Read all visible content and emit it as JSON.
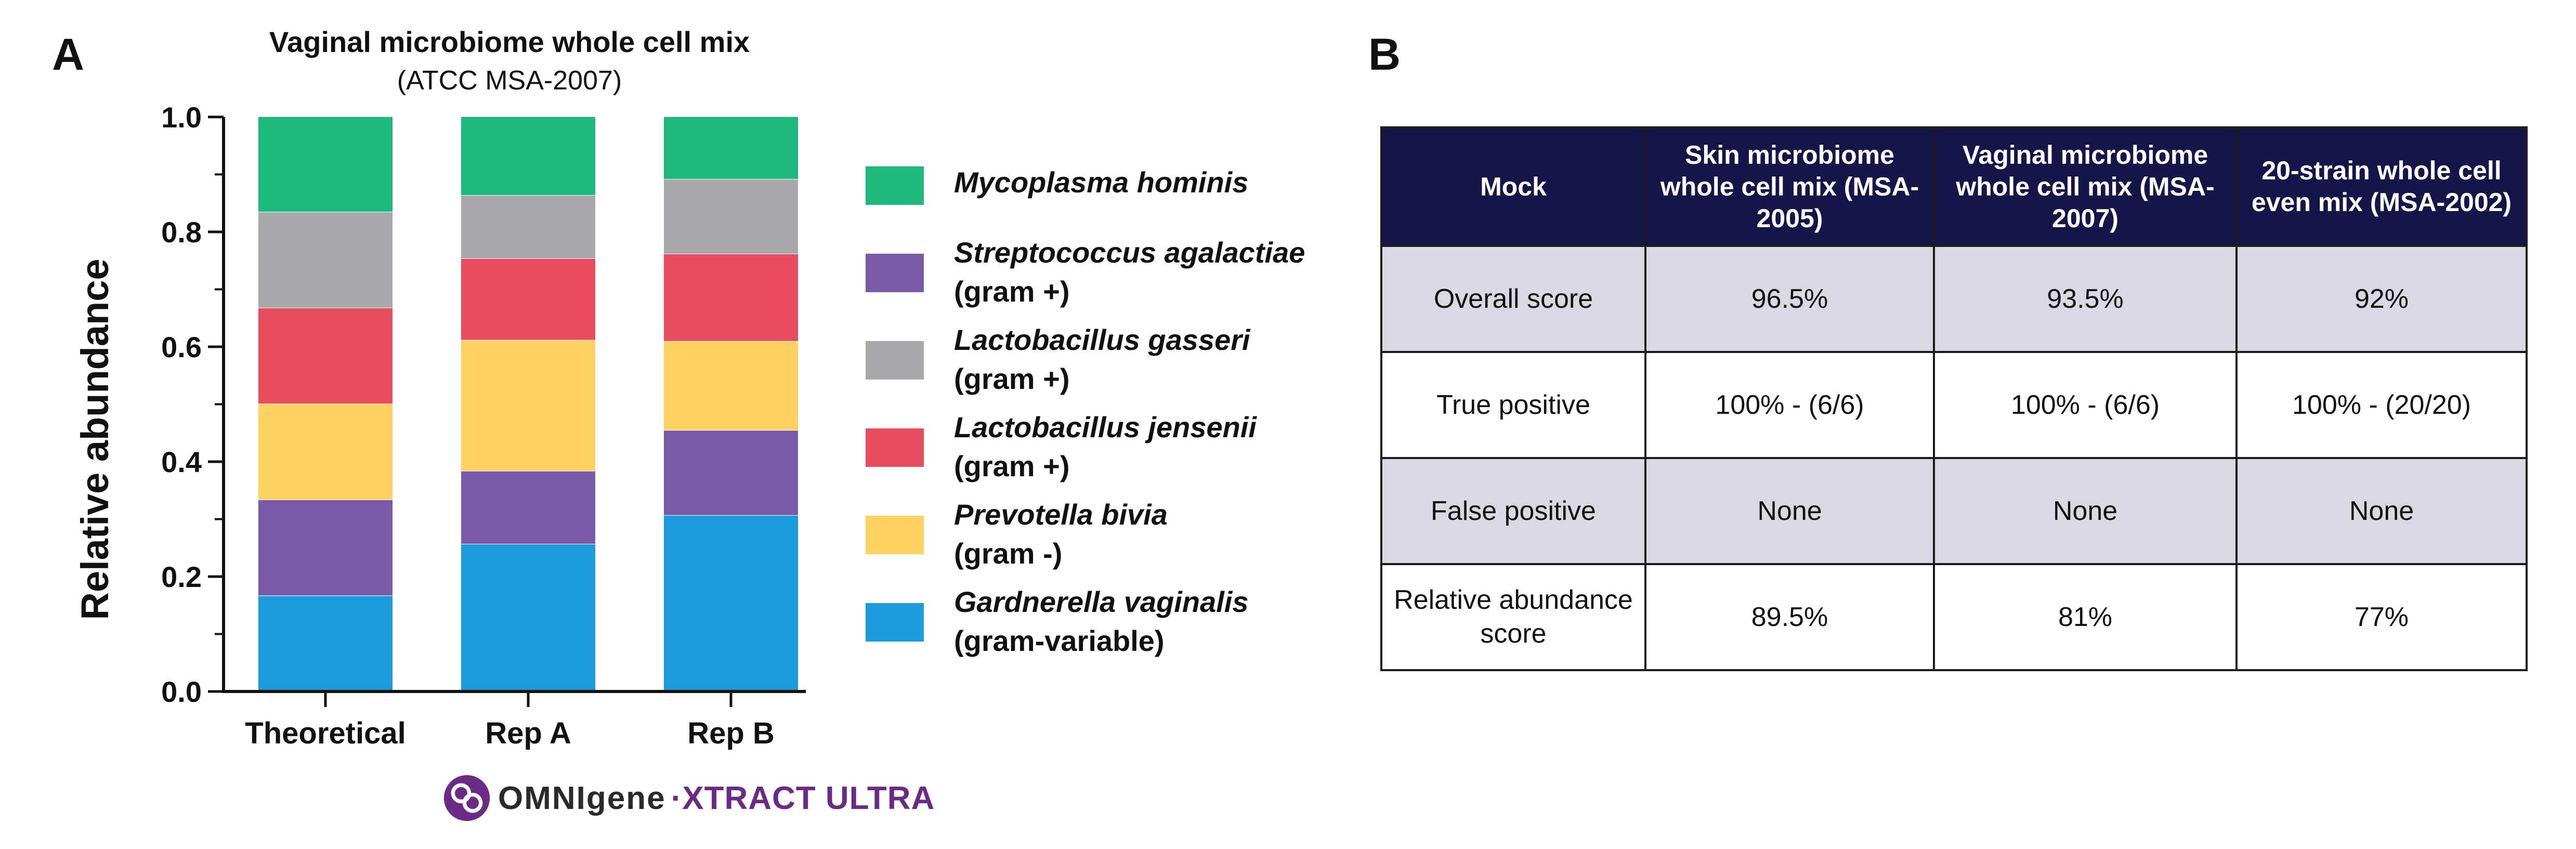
{
  "panels": {
    "a_label": "A",
    "b_label": "B"
  },
  "colors": {
    "Mycoplasma hominis": "#1db87e",
    "Streptococcus agalactiae": "#7a5aa8",
    "Lactobacillus gasseri": "#a8a8ab",
    "Lactobacillus jensenii": "#e84c5f",
    "Prevotella bivia": "#fdd262",
    "Gardnerella vaginalis": "#1a9cdc",
    "table_header_bg": "#15154a",
    "table_shaded_row": "#dad8e3",
    "brand_purple": "#6b2a86"
  },
  "chart_data": {
    "type": "bar",
    "stacked": true,
    "title": "Vaginal microbiome whole cell mix",
    "subtitle": "(ATCC MSA-2007)",
    "xlabel": "",
    "ylabel": "Relative abundance",
    "ylim": [
      0,
      1.0
    ],
    "yticks": [
      "0.0",
      "0.2",
      "0.4",
      "0.6",
      "0.8",
      "1.0"
    ],
    "categories": [
      "Theoretical",
      "Rep A",
      "Rep B"
    ],
    "series": [
      {
        "name": "Gardnerella vaginalis",
        "note": "(gram-variable)",
        "values": [
          0.167,
          0.257,
          0.307
        ]
      },
      {
        "name": "Streptococcus agalactiae",
        "note": "(gram +)",
        "values": [
          0.167,
          0.127,
          0.148
        ]
      },
      {
        "name": "Prevotella bivia",
        "note": "(gram -)",
        "values": [
          0.167,
          0.228,
          0.155
        ]
      },
      {
        "name": "Lactobacillus jensenii",
        "note": "(gram +)",
        "values": [
          0.167,
          0.142,
          0.152
        ]
      },
      {
        "name": "Lactobacillus gasseri",
        "note": "(gram +)",
        "values": [
          0.167,
          0.11,
          0.13
        ]
      },
      {
        "name": "Mycoplasma hominis",
        "note": "",
        "values": [
          0.165,
          0.136,
          0.108
        ]
      }
    ],
    "legend_order": [
      "Mycoplasma hominis",
      "Streptococcus agalactiae",
      "Lactobacillus gasseri",
      "Lactobacillus jensenii",
      "Prevotella bivia",
      "Gardnerella vaginalis"
    ],
    "legend_position": "right"
  },
  "brand": {
    "name": "OMNIgene",
    "suffix": "·XTRACT ULTRA",
    "logo_icon": "omnigene-logo-icon"
  },
  "table": {
    "headers": [
      "Mock",
      "Skin microbiome whole cell mix (MSA-2005)",
      "Vaginal microbiome whole cell mix (MSA-2007)",
      "20-strain whole cell even mix (MSA-2002)"
    ],
    "rows": [
      [
        "Overall score",
        "96.5%",
        "93.5%",
        "92%"
      ],
      [
        "True positive",
        "100% - (6/6)",
        "100% - (6/6)",
        "100% - (20/20)"
      ],
      [
        "False positive",
        "None",
        "None",
        "None"
      ],
      [
        "Relative abundance score",
        "89.5%",
        "81%",
        "77%"
      ]
    ]
  }
}
